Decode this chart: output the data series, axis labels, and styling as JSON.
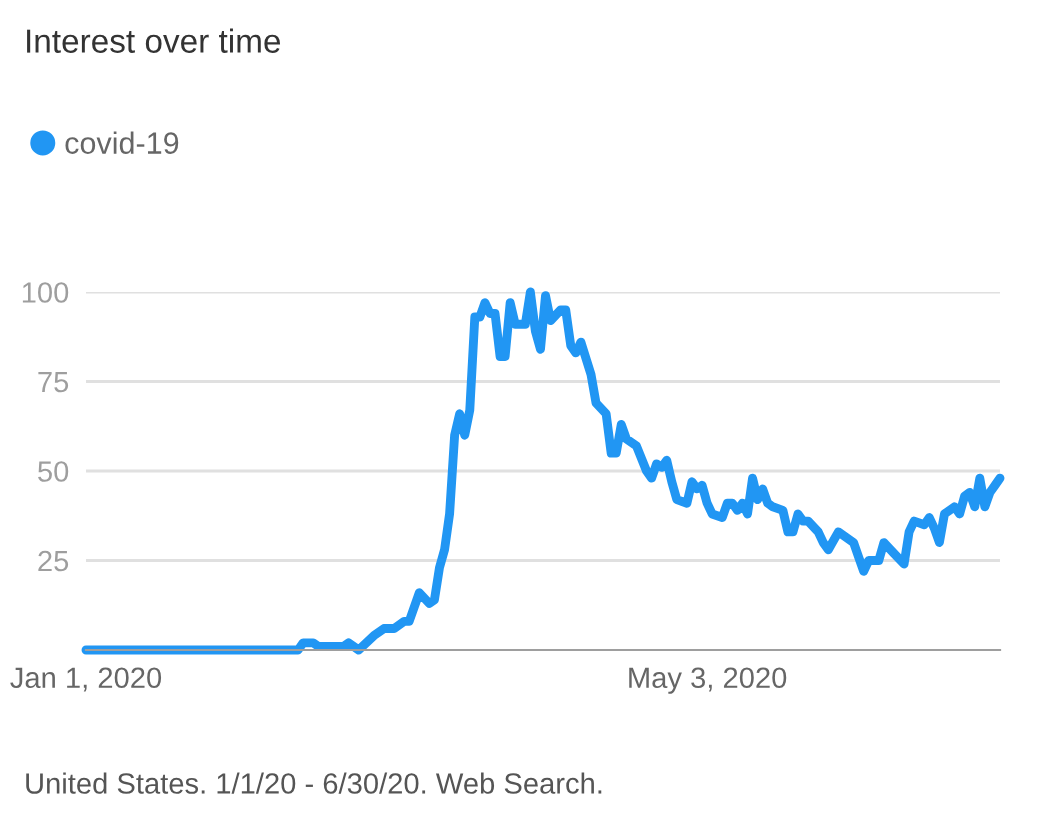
{
  "chart_data": {
    "type": "line",
    "title": "Interest over time",
    "x": [
      "2020-01-01",
      "2020-02-12",
      "2020-02-13",
      "2020-02-15",
      "2020-02-16",
      "2020-02-21",
      "2020-02-22",
      "2020-02-24",
      "2020-02-27",
      "2020-02-29",
      "2020-03-02",
      "2020-03-04",
      "2020-03-05",
      "2020-03-07",
      "2020-03-09",
      "2020-03-10",
      "2020-03-11",
      "2020-03-12",
      "2020-03-13",
      "2020-03-14",
      "2020-03-15",
      "2020-03-16",
      "2020-03-17",
      "2020-03-18",
      "2020-03-19",
      "2020-03-20",
      "2020-03-21",
      "2020-03-22",
      "2020-03-23",
      "2020-03-24",
      "2020-03-25",
      "2020-03-26",
      "2020-03-28",
      "2020-03-29",
      "2020-03-30",
      "2020-03-31",
      "2020-04-01",
      "2020-04-02",
      "2020-04-04",
      "2020-04-05",
      "2020-04-06",
      "2020-04-07",
      "2020-04-08",
      "2020-04-10",
      "2020-04-11",
      "2020-04-13",
      "2020-04-14",
      "2020-04-15",
      "2020-04-16",
      "2020-04-17",
      "2020-04-18",
      "2020-04-19",
      "2020-04-21",
      "2020-04-22",
      "2020-04-23",
      "2020-04-24",
      "2020-04-25",
      "2020-04-26",
      "2020-04-27",
      "2020-04-29",
      "2020-04-30",
      "2020-05-01",
      "2020-05-02",
      "2020-05-03",
      "2020-05-04",
      "2020-05-06",
      "2020-05-07",
      "2020-05-08",
      "2020-05-09",
      "2020-05-10",
      "2020-05-11",
      "2020-05-12",
      "2020-05-13",
      "2020-05-14",
      "2020-05-15",
      "2020-05-16",
      "2020-05-18",
      "2020-05-19",
      "2020-05-20",
      "2020-05-21",
      "2020-05-22",
      "2020-05-23",
      "2020-05-25",
      "2020-05-26",
      "2020-05-27",
      "2020-05-29",
      "2020-06-01",
      "2020-06-02",
      "2020-06-03",
      "2020-06-04",
      "2020-06-06",
      "2020-06-07",
      "2020-06-09",
      "2020-06-11",
      "2020-06-12",
      "2020-06-13",
      "2020-06-15",
      "2020-06-16",
      "2020-06-17",
      "2020-06-18",
      "2020-06-19",
      "2020-06-21",
      "2020-06-22",
      "2020-06-23",
      "2020-06-24",
      "2020-06-25",
      "2020-06-26",
      "2020-06-27",
      "2020-06-28",
      "2020-06-29",
      "2020-06-30"
    ],
    "series": [
      {
        "name": "covid-19",
        "color": "#2196f3",
        "values": [
          0,
          0,
          2,
          2,
          1,
          1,
          2,
          0,
          4,
          6,
          6,
          8,
          8,
          16,
          13,
          14,
          23,
          28,
          38,
          60,
          66,
          60,
          67,
          93,
          93,
          97,
          94,
          94,
          82,
          82,
          97,
          91,
          91,
          100,
          89,
          84,
          99,
          92,
          95,
          95,
          85,
          83,
          86,
          77,
          69,
          66,
          55,
          55,
          63,
          59,
          58,
          57,
          50,
          48,
          52,
          51,
          53,
          47,
          42,
          41,
          47,
          45,
          46,
          41,
          38,
          37,
          41,
          41,
          39,
          41,
          38,
          48,
          42,
          45,
          41,
          40,
          39,
          33,
          33,
          38,
          36,
          36,
          33,
          30,
          28,
          33,
          30,
          26,
          22,
          25,
          25,
          30,
          27,
          24,
          33,
          36,
          35,
          37,
          34,
          30,
          38,
          40,
          38,
          43,
          44,
          40,
          48,
          40,
          44,
          46,
          48
        ]
      }
    ],
    "xlim": [
      "2020-01-01",
      "2020-06-30"
    ],
    "xticks": [
      {
        "value": "2020-01-01",
        "label": "Jan 1, 2020"
      },
      {
        "value": "2020-05-03",
        "label": "May 3, 2020"
      }
    ],
    "ylim": [
      0,
      100
    ],
    "yticks": [
      25,
      50,
      75,
      100
    ],
    "grid": "y",
    "legend": "top left",
    "marker": "none",
    "line_style": "solid",
    "annotations": [
      "United States. 1/1/20 - 6/30/20. Web Search."
    ]
  }
}
